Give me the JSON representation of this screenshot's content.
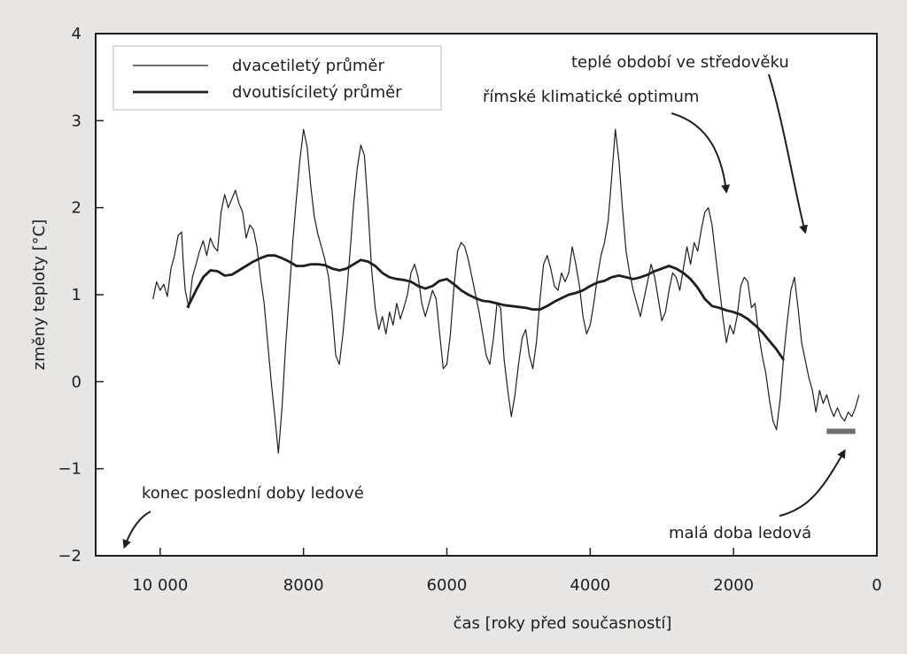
{
  "chart_data": {
    "type": "line",
    "xlabel": "čas [roky před současností]",
    "ylabel": "změny teploty [°C]",
    "xlim": [
      10900,
      0
    ],
    "ylim": [
      -2,
      4
    ],
    "x_ticks": [
      {
        "value": 10000,
        "label": "10 000"
      },
      {
        "value": 8000,
        "label": "8000"
      },
      {
        "value": 6000,
        "label": "6000"
      },
      {
        "value": 4000,
        "label": "4000"
      },
      {
        "value": 2000,
        "label": "2000"
      },
      {
        "value": 0,
        "label": "0"
      }
    ],
    "y_ticks": [
      {
        "value": 4,
        "label": "4"
      },
      {
        "value": 3,
        "label": "3"
      },
      {
        "value": 2,
        "label": "2"
      },
      {
        "value": 1,
        "label": "1"
      },
      {
        "value": 0,
        "label": "0"
      },
      {
        "value": -1,
        "label": "−1"
      },
      {
        "value": -2,
        "label": "−2"
      }
    ],
    "grid": false,
    "legend_position": "top-left",
    "series": [
      {
        "name": "dvacetiletý průměr",
        "style": "thin",
        "points": [
          [
            10100,
            0.95
          ],
          [
            10050,
            1.15
          ],
          [
            10000,
            1.05
          ],
          [
            9950,
            1.12
          ],
          [
            9900,
            0.98
          ],
          [
            9850,
            1.3
          ],
          [
            9800,
            1.45
          ],
          [
            9750,
            1.68
          ],
          [
            9700,
            1.72
          ],
          [
            9680,
            1.4
          ],
          [
            9650,
            1.05
          ],
          [
            9600,
            0.85
          ],
          [
            9550,
            1.2
          ],
          [
            9500,
            1.35
          ],
          [
            9450,
            1.5
          ],
          [
            9400,
            1.62
          ],
          [
            9350,
            1.45
          ],
          [
            9300,
            1.65
          ],
          [
            9250,
            1.55
          ],
          [
            9200,
            1.5
          ],
          [
            9150,
            1.95
          ],
          [
            9100,
            2.15
          ],
          [
            9050,
            2.0
          ],
          [
            9000,
            2.1
          ],
          [
            8950,
            2.2
          ],
          [
            8900,
            2.05
          ],
          [
            8850,
            1.95
          ],
          [
            8800,
            1.65
          ],
          [
            8750,
            1.8
          ],
          [
            8700,
            1.75
          ],
          [
            8650,
            1.55
          ],
          [
            8600,
            1.2
          ],
          [
            8550,
            0.9
          ],
          [
            8500,
            0.45
          ],
          [
            8450,
            0.0
          ],
          [
            8400,
            -0.4
          ],
          [
            8350,
            -0.82
          ],
          [
            8300,
            -0.3
          ],
          [
            8250,
            0.4
          ],
          [
            8200,
            1.0
          ],
          [
            8150,
            1.6
          ],
          [
            8100,
            2.1
          ],
          [
            8050,
            2.55
          ],
          [
            8000,
            2.9
          ],
          [
            7950,
            2.7
          ],
          [
            7900,
            2.25
          ],
          [
            7850,
            1.9
          ],
          [
            7800,
            1.7
          ],
          [
            7750,
            1.55
          ],
          [
            7700,
            1.4
          ],
          [
            7650,
            1.2
          ],
          [
            7600,
            0.8
          ],
          [
            7550,
            0.3
          ],
          [
            7500,
            0.2
          ],
          [
            7450,
            0.55
          ],
          [
            7400,
            1.0
          ],
          [
            7350,
            1.5
          ],
          [
            7300,
            2.05
          ],
          [
            7250,
            2.45
          ],
          [
            7200,
            2.72
          ],
          [
            7150,
            2.6
          ],
          [
            7100,
            2.0
          ],
          [
            7050,
            1.3
          ],
          [
            7000,
            0.85
          ],
          [
            6950,
            0.6
          ],
          [
            6900,
            0.75
          ],
          [
            6850,
            0.55
          ],
          [
            6800,
            0.8
          ],
          [
            6750,
            0.65
          ],
          [
            6700,
            0.9
          ],
          [
            6650,
            0.72
          ],
          [
            6600,
            0.85
          ],
          [
            6550,
            1.0
          ],
          [
            6500,
            1.25
          ],
          [
            6450,
            1.35
          ],
          [
            6400,
            1.2
          ],
          [
            6350,
            0.9
          ],
          [
            6300,
            0.75
          ],
          [
            6250,
            0.9
          ],
          [
            6200,
            1.05
          ],
          [
            6150,
            0.95
          ],
          [
            6100,
            0.55
          ],
          [
            6050,
            0.15
          ],
          [
            6000,
            0.2
          ],
          [
            5950,
            0.55
          ],
          [
            5900,
            1.1
          ],
          [
            5850,
            1.5
          ],
          [
            5800,
            1.6
          ],
          [
            5750,
            1.55
          ],
          [
            5700,
            1.4
          ],
          [
            5650,
            1.2
          ],
          [
            5600,
            1.0
          ],
          [
            5550,
            0.8
          ],
          [
            5500,
            0.55
          ],
          [
            5450,
            0.3
          ],
          [
            5400,
            0.2
          ],
          [
            5350,
            0.5
          ],
          [
            5300,
            0.9
          ],
          [
            5250,
            0.85
          ],
          [
            5200,
            0.25
          ],
          [
            5150,
            -0.1
          ],
          [
            5100,
            -0.4
          ],
          [
            5050,
            -0.15
          ],
          [
            5000,
            0.2
          ],
          [
            4950,
            0.5
          ],
          [
            4900,
            0.6
          ],
          [
            4850,
            0.3
          ],
          [
            4800,
            0.15
          ],
          [
            4750,
            0.45
          ],
          [
            4700,
            0.95
          ],
          [
            4650,
            1.35
          ],
          [
            4600,
            1.45
          ],
          [
            4550,
            1.3
          ],
          [
            4500,
            1.1
          ],
          [
            4450,
            1.05
          ],
          [
            4400,
            1.25
          ],
          [
            4350,
            1.15
          ],
          [
            4300,
            1.25
          ],
          [
            4250,
            1.55
          ],
          [
            4200,
            1.35
          ],
          [
            4150,
            1.1
          ],
          [
            4100,
            0.75
          ],
          [
            4050,
            0.55
          ],
          [
            4000,
            0.65
          ],
          [
            3950,
            0.9
          ],
          [
            3900,
            1.2
          ],
          [
            3850,
            1.45
          ],
          [
            3800,
            1.6
          ],
          [
            3750,
            1.85
          ],
          [
            3700,
            2.35
          ],
          [
            3650,
            2.9
          ],
          [
            3600,
            2.55
          ],
          [
            3550,
            2.0
          ],
          [
            3500,
            1.5
          ],
          [
            3450,
            1.25
          ],
          [
            3400,
            1.05
          ],
          [
            3350,
            0.9
          ],
          [
            3300,
            0.75
          ],
          [
            3250,
            0.95
          ],
          [
            3200,
            1.15
          ],
          [
            3150,
            1.35
          ],
          [
            3100,
            1.2
          ],
          [
            3050,
            0.95
          ],
          [
            3000,
            0.7
          ],
          [
            2950,
            0.8
          ],
          [
            2900,
            1.05
          ],
          [
            2850,
            1.25
          ],
          [
            2800,
            1.2
          ],
          [
            2750,
            1.05
          ],
          [
            2700,
            1.3
          ],
          [
            2650,
            1.55
          ],
          [
            2600,
            1.35
          ],
          [
            2550,
            1.6
          ],
          [
            2500,
            1.5
          ],
          [
            2450,
            1.75
          ],
          [
            2400,
            1.95
          ],
          [
            2350,
            2.0
          ],
          [
            2300,
            1.8
          ],
          [
            2250,
            1.45
          ],
          [
            2200,
            1.1
          ],
          [
            2150,
            0.75
          ],
          [
            2100,
            0.45
          ],
          [
            2050,
            0.65
          ],
          [
            2000,
            0.55
          ],
          [
            1950,
            0.75
          ],
          [
            1900,
            1.1
          ],
          [
            1850,
            1.2
          ],
          [
            1800,
            1.15
          ],
          [
            1750,
            0.85
          ],
          [
            1700,
            0.9
          ],
          [
            1650,
            0.55
          ],
          [
            1600,
            0.3
          ],
          [
            1550,
            0.1
          ],
          [
            1500,
            -0.2
          ],
          [
            1450,
            -0.45
          ],
          [
            1400,
            -0.55
          ],
          [
            1350,
            -0.2
          ],
          [
            1300,
            0.3
          ],
          [
            1250,
            0.7
          ],
          [
            1200,
            1.05
          ],
          [
            1150,
            1.2
          ],
          [
            1100,
            0.85
          ],
          [
            1050,
            0.45
          ],
          [
            1000,
            0.25
          ],
          [
            950,
            0.05
          ],
          [
            900,
            -0.1
          ],
          [
            850,
            -0.35
          ],
          [
            800,
            -0.1
          ],
          [
            750,
            -0.25
          ],
          [
            700,
            -0.15
          ],
          [
            650,
            -0.3
          ],
          [
            600,
            -0.4
          ],
          [
            550,
            -0.3
          ],
          [
            500,
            -0.4
          ],
          [
            450,
            -0.45
          ],
          [
            400,
            -0.35
          ],
          [
            350,
            -0.4
          ],
          [
            300,
            -0.3
          ],
          [
            250,
            -0.15
          ]
        ]
      },
      {
        "name": "dvoutisíciletý průměr",
        "style": "thick",
        "points": [
          [
            9620,
            0.85
          ],
          [
            9500,
            1.05
          ],
          [
            9400,
            1.2
          ],
          [
            9300,
            1.28
          ],
          [
            9200,
            1.27
          ],
          [
            9100,
            1.22
          ],
          [
            9000,
            1.23
          ],
          [
            8900,
            1.28
          ],
          [
            8800,
            1.33
          ],
          [
            8700,
            1.38
          ],
          [
            8600,
            1.42
          ],
          [
            8500,
            1.45
          ],
          [
            8400,
            1.45
          ],
          [
            8300,
            1.42
          ],
          [
            8200,
            1.38
          ],
          [
            8100,
            1.33
          ],
          [
            8000,
            1.33
          ],
          [
            7900,
            1.35
          ],
          [
            7800,
            1.35
          ],
          [
            7700,
            1.34
          ],
          [
            7600,
            1.3
          ],
          [
            7500,
            1.28
          ],
          [
            7400,
            1.3
          ],
          [
            7300,
            1.35
          ],
          [
            7200,
            1.4
          ],
          [
            7100,
            1.38
          ],
          [
            7000,
            1.33
          ],
          [
            6900,
            1.25
          ],
          [
            6800,
            1.2
          ],
          [
            6700,
            1.18
          ],
          [
            6600,
            1.17
          ],
          [
            6500,
            1.15
          ],
          [
            6400,
            1.1
          ],
          [
            6300,
            1.07
          ],
          [
            6200,
            1.1
          ],
          [
            6100,
            1.16
          ],
          [
            6000,
            1.18
          ],
          [
            5900,
            1.12
          ],
          [
            5800,
            1.05
          ],
          [
            5700,
            1.0
          ],
          [
            5600,
            0.96
          ],
          [
            5500,
            0.93
          ],
          [
            5400,
            0.92
          ],
          [
            5300,
            0.9
          ],
          [
            5200,
            0.88
          ],
          [
            5100,
            0.87
          ],
          [
            5000,
            0.86
          ],
          [
            4900,
            0.85
          ],
          [
            4800,
            0.83
          ],
          [
            4700,
            0.83
          ],
          [
            4600,
            0.87
          ],
          [
            4500,
            0.92
          ],
          [
            4400,
            0.96
          ],
          [
            4300,
            1.0
          ],
          [
            4200,
            1.02
          ],
          [
            4100,
            1.05
          ],
          [
            4000,
            1.1
          ],
          [
            3900,
            1.14
          ],
          [
            3800,
            1.16
          ],
          [
            3700,
            1.2
          ],
          [
            3600,
            1.22
          ],
          [
            3500,
            1.2
          ],
          [
            3400,
            1.18
          ],
          [
            3300,
            1.2
          ],
          [
            3200,
            1.23
          ],
          [
            3100,
            1.27
          ],
          [
            3000,
            1.3
          ],
          [
            2900,
            1.33
          ],
          [
            2800,
            1.3
          ],
          [
            2700,
            1.25
          ],
          [
            2600,
            1.18
          ],
          [
            2500,
            1.08
          ],
          [
            2400,
            0.95
          ],
          [
            2300,
            0.87
          ],
          [
            2200,
            0.85
          ],
          [
            2100,
            0.82
          ],
          [
            2000,
            0.8
          ],
          [
            1900,
            0.77
          ],
          [
            1800,
            0.72
          ],
          [
            1700,
            0.65
          ],
          [
            1600,
            0.57
          ],
          [
            1500,
            0.47
          ],
          [
            1400,
            0.37
          ],
          [
            1300,
            0.25
          ]
        ]
      }
    ],
    "band": {
      "from": 700,
      "to": 300,
      "y": -0.57,
      "color": "#6e6e6e"
    },
    "annotations": [
      {
        "id": "medieval",
        "text": "teplé období ve středověku",
        "target_x": 1000,
        "target_y": 1.35
      },
      {
        "id": "roman",
        "text": "římské klimatické optimum",
        "target_x": 2100,
        "target_y": 2.15
      },
      {
        "id": "ice-age-end",
        "text": "konec poslední doby ledové",
        "target_x": 10500,
        "target_y": -1.9
      },
      {
        "id": "little-ice-age",
        "text": "malá doba ledová",
        "target_x": 450,
        "target_y": -0.7
      }
    ]
  }
}
